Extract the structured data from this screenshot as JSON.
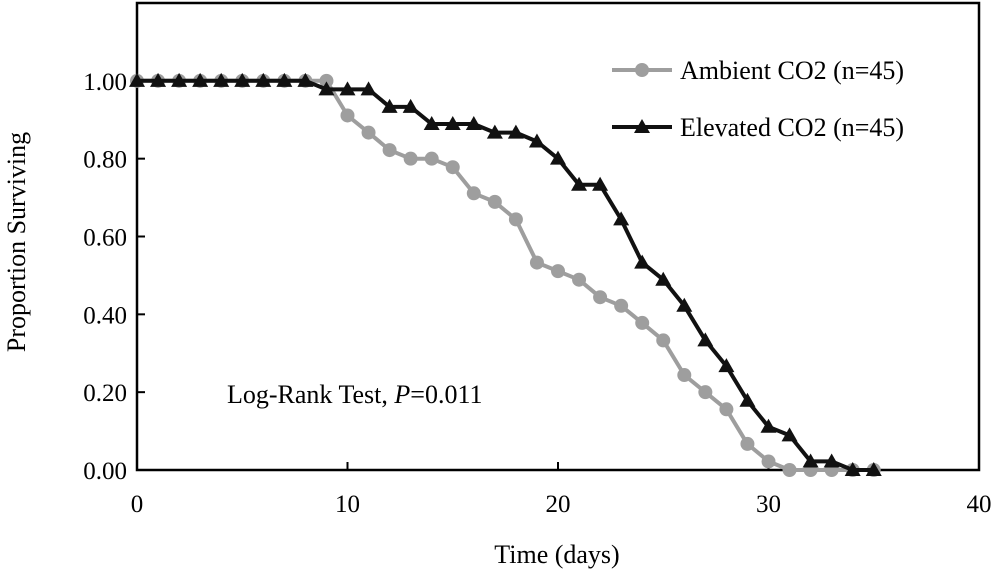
{
  "chart_data": {
    "type": "line",
    "title": "",
    "xlabel": "Time (days)",
    "ylabel": "Proportion Surviving",
    "xlim": [
      0,
      40
    ],
    "ylim": [
      0,
      1.2
    ],
    "x_ticks": [
      0,
      10,
      20,
      30,
      40
    ],
    "x_tick_labels": [
      "0",
      "10",
      "20",
      "30",
      "40"
    ],
    "y_ticks": [
      0,
      0.2,
      0.4,
      0.6,
      0.8,
      1.0
    ],
    "y_tick_labels": [
      "0.00",
      "0.20",
      "0.40",
      "0.60",
      "0.80",
      "1.00"
    ],
    "grid": false,
    "legend_position": "top-right",
    "annotation": {
      "prefix": "Log-Rank Test, ",
      "italic": "P",
      "suffix": "=0.011"
    },
    "series": [
      {
        "name": "Ambient CO2 (n=45)",
        "color": "#9e9e9e",
        "marker": "circle",
        "x": [
          0,
          1,
          2,
          3,
          4,
          5,
          6,
          7,
          8,
          9,
          10,
          11,
          12,
          13,
          14,
          15,
          16,
          17,
          18,
          19,
          20,
          21,
          22,
          23,
          24,
          25,
          26,
          27,
          28,
          29,
          30,
          31,
          32,
          33,
          34,
          35
        ],
        "y": [
          1.0,
          1.0,
          1.0,
          1.0,
          1.0,
          1.0,
          1.0,
          1.0,
          1.0,
          1.0,
          0.911,
          0.867,
          0.822,
          0.8,
          0.8,
          0.778,
          0.711,
          0.689,
          0.644,
          0.533,
          0.511,
          0.489,
          0.444,
          0.422,
          0.378,
          0.333,
          0.244,
          0.2,
          0.156,
          0.067,
          0.022,
          0.0,
          0.0,
          0.0,
          0.0,
          0.0
        ]
      },
      {
        "name": "Elevated CO2 (n=45)",
        "color": "#111111",
        "marker": "triangle",
        "x": [
          0,
          1,
          2,
          3,
          4,
          5,
          6,
          7,
          8,
          9,
          10,
          11,
          12,
          13,
          14,
          15,
          16,
          17,
          18,
          19,
          20,
          21,
          22,
          23,
          24,
          25,
          26,
          27,
          28,
          29,
          30,
          31,
          32,
          33,
          34,
          35
        ],
        "y": [
          1.0,
          1.0,
          1.0,
          1.0,
          1.0,
          1.0,
          1.0,
          1.0,
          1.0,
          0.978,
          0.978,
          0.978,
          0.933,
          0.933,
          0.889,
          0.889,
          0.889,
          0.867,
          0.867,
          0.844,
          0.8,
          0.733,
          0.733,
          0.644,
          0.533,
          0.489,
          0.422,
          0.333,
          0.267,
          0.178,
          0.111,
          0.089,
          0.022,
          0.022,
          0.0,
          0.0
        ]
      }
    ]
  }
}
